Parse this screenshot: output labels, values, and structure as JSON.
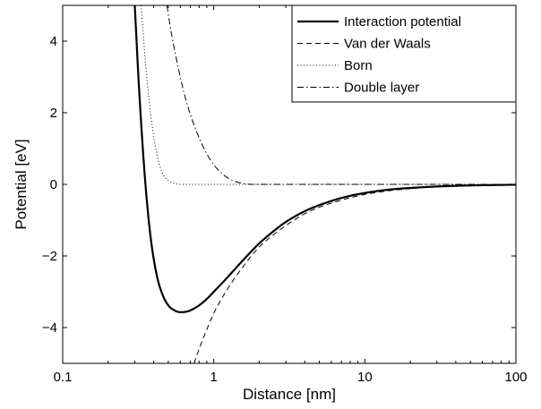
{
  "chart_data": {
    "type": "line",
    "xlabel": "Distance [nm]",
    "ylabel": "Potential [eV]",
    "xscale": "log",
    "xlim": [
      0.1,
      100
    ],
    "ylim": [
      -5,
      5
    ],
    "x_ticks": [
      0.1,
      1,
      10,
      100
    ],
    "x_tick_labels": [
      "0.1",
      "1",
      "10",
      "100"
    ],
    "y_ticks": [
      -4,
      -2,
      0,
      2,
      4
    ],
    "y_tick_labels": [
      "−4",
      "−2",
      "0",
      "2",
      "4"
    ],
    "grid": false,
    "legend_position": "top-right",
    "series": [
      {
        "name": "Interaction potential",
        "line_style": "solid",
        "color": "#000000",
        "x": [
          0.3,
          0.32,
          0.35,
          0.38,
          0.42,
          0.46,
          0.5,
          0.55,
          0.6,
          0.65,
          0.7,
          0.8,
          0.9,
          1.0,
          1.2,
          1.5,
          2.0,
          2.5,
          3.0,
          4.0,
          5.0,
          7.0,
          10,
          15,
          20,
          30,
          50,
          100
        ],
        "y": [
          5.0,
          2.7,
          0.2,
          -1.4,
          -2.55,
          -3.1,
          -3.38,
          -3.52,
          -3.57,
          -3.56,
          -3.52,
          -3.38,
          -3.2,
          -3.0,
          -2.65,
          -2.2,
          -1.65,
          -1.3,
          -1.05,
          -0.75,
          -0.58,
          -0.38,
          -0.24,
          -0.14,
          -0.1,
          -0.06,
          -0.03,
          -0.01
        ]
      },
      {
        "name": "Van der Waals",
        "line_style": "dashed",
        "color": "#000000",
        "x": [
          0.74,
          0.8,
          0.9,
          1.0,
          1.2,
          1.5,
          2.0,
          2.5,
          3.0,
          4.0,
          5.0,
          7.0,
          10,
          15,
          20,
          30,
          50,
          100
        ],
        "y": [
          -5.0,
          -4.6,
          -4.05,
          -3.6,
          -3.0,
          -2.4,
          -1.75,
          -1.4,
          -1.15,
          -0.82,
          -0.64,
          -0.44,
          -0.28,
          -0.17,
          -0.12,
          -0.07,
          -0.04,
          -0.015
        ]
      },
      {
        "name": "Born",
        "line_style": "dotted",
        "color": "#000000",
        "x": [
          0.33,
          0.35,
          0.37,
          0.4,
          0.43,
          0.46,
          0.5,
          0.55,
          0.6,
          0.7,
          1.0,
          10,
          100
        ],
        "y": [
          5.0,
          3.6,
          2.5,
          1.35,
          0.65,
          0.3,
          0.1,
          0.03,
          0.0,
          0.0,
          0.0,
          0.0,
          0.0
        ]
      },
      {
        "name": "Double layer",
        "line_style": "dashdot",
        "color": "#000000",
        "x": [
          0.49,
          0.52,
          0.56,
          0.6,
          0.65,
          0.7,
          0.8,
          0.9,
          1.0,
          1.15,
          1.3,
          1.5,
          1.8,
          2.0,
          5.0,
          10,
          100
        ],
        "y": [
          5.0,
          4.3,
          3.6,
          3.0,
          2.4,
          1.95,
          1.3,
          0.85,
          0.55,
          0.28,
          0.13,
          0.04,
          0.0,
          0.0,
          0.0,
          0.0,
          0.0
        ]
      }
    ]
  }
}
